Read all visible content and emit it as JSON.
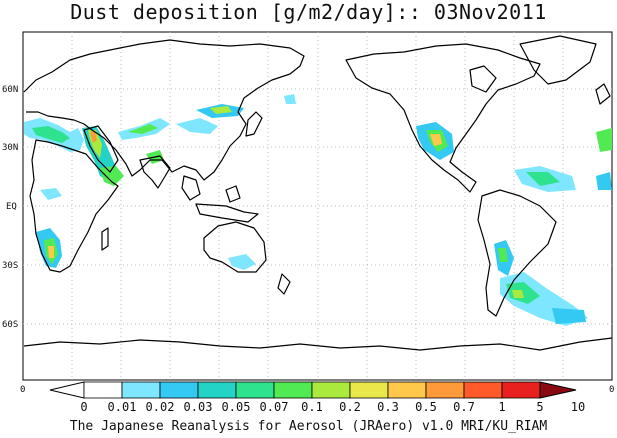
{
  "title": "Dust deposition [g/m2/day]:: 03Nov2011",
  "footer": "The Japanese Reanalysis for Aerosol (JRAero) v1.0 MRI/KU_RIAM",
  "lat_labels": [
    "60N",
    "30N",
    "EQ",
    "30S",
    "60S"
  ],
  "lon_labels": [
    "0",
    "0"
  ],
  "colorbar": {
    "labels": [
      "0",
      "0.01",
      "0.02",
      "0.03",
      "0.05",
      "0.07",
      "0.1",
      "0.2",
      "0.3",
      "0.5",
      "0.7",
      "1",
      "5",
      "10"
    ],
    "colors": [
      "#ffffff",
      "#7fe6ff",
      "#33c9f2",
      "#22d3c6",
      "#2fe38e",
      "#52ea52",
      "#a9ea3d",
      "#e8e84a",
      "#ffc84a",
      "#ff9a3a",
      "#ff5a2a",
      "#e8201e",
      "#b8101a",
      "#8a0a14"
    ]
  },
  "grid": {
    "dotted": true
  },
  "colors": {
    "land_outline": "#000000",
    "grid": "#bbbbbb",
    "background": "#ffffff"
  }
}
